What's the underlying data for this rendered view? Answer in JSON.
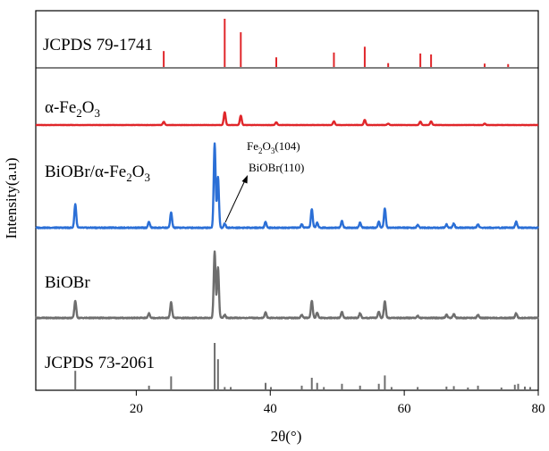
{
  "chart_data": {
    "type": "line",
    "title": "",
    "xlabel": "2θ(°)",
    "ylabel": "Intensity(a.u)",
    "xlim": [
      5,
      80
    ],
    "x_ticks": [
      20,
      40,
      60,
      80
    ],
    "y_ticks": [],
    "grid": false,
    "legend": "none",
    "colors": {
      "red": "#e0262a",
      "blue": "#2b6fd6",
      "gray": "#6e6e6e",
      "axis": "#000000"
    },
    "panels": [
      {
        "label": "JCPDS 79-1741",
        "kind": "stick",
        "color": "red",
        "peaks": [
          {
            "x": 24.1,
            "h": 0.33
          },
          {
            "x": 33.2,
            "h": 1.0
          },
          {
            "x": 35.6,
            "h": 0.72
          },
          {
            "x": 40.9,
            "h": 0.2
          },
          {
            "x": 49.5,
            "h": 0.3
          },
          {
            "x": 54.1,
            "h": 0.42
          },
          {
            "x": 57.6,
            "h": 0.08
          },
          {
            "x": 62.4,
            "h": 0.28
          },
          {
            "x": 64.0,
            "h": 0.26
          },
          {
            "x": 72.0,
            "h": 0.07
          },
          {
            "x": 75.5,
            "h": 0.06
          }
        ]
      },
      {
        "label_main": "α-Fe",
        "label_sub1": "2",
        "label_mid": "O",
        "label_sub2": "3",
        "kind": "pattern",
        "color": "red",
        "peaks": [
          {
            "x": 24.1,
            "h": 0.14
          },
          {
            "x": 33.2,
            "h": 0.55
          },
          {
            "x": 35.6,
            "h": 0.4
          },
          {
            "x": 40.9,
            "h": 0.12
          },
          {
            "x": 49.5,
            "h": 0.16
          },
          {
            "x": 54.1,
            "h": 0.22
          },
          {
            "x": 57.6,
            "h": 0.06
          },
          {
            "x": 62.4,
            "h": 0.15
          },
          {
            "x": 64.0,
            "h": 0.16
          },
          {
            "x": 72.0,
            "h": 0.06
          }
        ]
      },
      {
        "label_main": "BiOBr/α-Fe",
        "label_sub1": "2",
        "label_mid": "O",
        "label_sub2": "3",
        "kind": "pattern",
        "color": "blue",
        "peaks": [
          {
            "x": 10.9,
            "h": 0.28
          },
          {
            "x": 21.9,
            "h": 0.07
          },
          {
            "x": 25.2,
            "h": 0.18
          },
          {
            "x": 31.7,
            "h": 1.0
          },
          {
            "x": 32.2,
            "h": 0.6
          },
          {
            "x": 33.2,
            "h": 0.05
          },
          {
            "x": 39.3,
            "h": 0.07
          },
          {
            "x": 44.7,
            "h": 0.04
          },
          {
            "x": 46.2,
            "h": 0.22
          },
          {
            "x": 47.0,
            "h": 0.06
          },
          {
            "x": 50.7,
            "h": 0.08
          },
          {
            "x": 53.4,
            "h": 0.06
          },
          {
            "x": 56.2,
            "h": 0.07
          },
          {
            "x": 57.1,
            "h": 0.23
          },
          {
            "x": 62.0,
            "h": 0.03
          },
          {
            "x": 66.3,
            "h": 0.04
          },
          {
            "x": 67.4,
            "h": 0.05
          },
          {
            "x": 71.0,
            "h": 0.04
          },
          {
            "x": 76.7,
            "h": 0.07
          }
        ]
      },
      {
        "label": "BiOBr",
        "kind": "pattern",
        "color": "gray",
        "peaks": [
          {
            "x": 10.9,
            "h": 0.22
          },
          {
            "x": 21.9,
            "h": 0.06
          },
          {
            "x": 25.2,
            "h": 0.2
          },
          {
            "x": 31.7,
            "h": 0.85
          },
          {
            "x": 32.2,
            "h": 0.65
          },
          {
            "x": 33.2,
            "h": 0.04
          },
          {
            "x": 39.3,
            "h": 0.07
          },
          {
            "x": 44.7,
            "h": 0.04
          },
          {
            "x": 46.2,
            "h": 0.22
          },
          {
            "x": 47.0,
            "h": 0.07
          },
          {
            "x": 50.7,
            "h": 0.08
          },
          {
            "x": 53.4,
            "h": 0.06
          },
          {
            "x": 56.2,
            "h": 0.08
          },
          {
            "x": 57.1,
            "h": 0.22
          },
          {
            "x": 62.0,
            "h": 0.03
          },
          {
            "x": 66.3,
            "h": 0.04
          },
          {
            "x": 67.4,
            "h": 0.05
          },
          {
            "x": 71.0,
            "h": 0.04
          },
          {
            "x": 76.7,
            "h": 0.06
          }
        ]
      },
      {
        "label": "JCPDS 73-2061",
        "kind": "stick",
        "color": "gray",
        "peaks": [
          {
            "x": 10.9,
            "h": 0.4
          },
          {
            "x": 21.9,
            "h": 0.08
          },
          {
            "x": 25.2,
            "h": 0.28
          },
          {
            "x": 31.7,
            "h": 1.0
          },
          {
            "x": 32.2,
            "h": 0.65
          },
          {
            "x": 33.2,
            "h": 0.05
          },
          {
            "x": 34.1,
            "h": 0.05
          },
          {
            "x": 39.3,
            "h": 0.14
          },
          {
            "x": 40.1,
            "h": 0.05
          },
          {
            "x": 44.7,
            "h": 0.08
          },
          {
            "x": 46.2,
            "h": 0.25
          },
          {
            "x": 47.0,
            "h": 0.14
          },
          {
            "x": 48.0,
            "h": 0.05
          },
          {
            "x": 50.7,
            "h": 0.12
          },
          {
            "x": 53.4,
            "h": 0.08
          },
          {
            "x": 56.2,
            "h": 0.12
          },
          {
            "x": 57.1,
            "h": 0.3
          },
          {
            "x": 58.1,
            "h": 0.05
          },
          {
            "x": 62.0,
            "h": 0.05
          },
          {
            "x": 66.3,
            "h": 0.06
          },
          {
            "x": 67.4,
            "h": 0.07
          },
          {
            "x": 69.5,
            "h": 0.04
          },
          {
            "x": 71.0,
            "h": 0.08
          },
          {
            "x": 74.5,
            "h": 0.04
          },
          {
            "x": 76.5,
            "h": 0.1
          },
          {
            "x": 77.0,
            "h": 0.12
          },
          {
            "x": 78.0,
            "h": 0.06
          },
          {
            "x": 78.8,
            "h": 0.05
          }
        ]
      }
    ],
    "annotations": [
      {
        "label_main": "Fe",
        "label_sub1": "2",
        "label_mid": "O",
        "label_sub2": "3",
        "label_tail": "(104)"
      },
      {
        "label": "BiOBr(110)"
      }
    ]
  }
}
